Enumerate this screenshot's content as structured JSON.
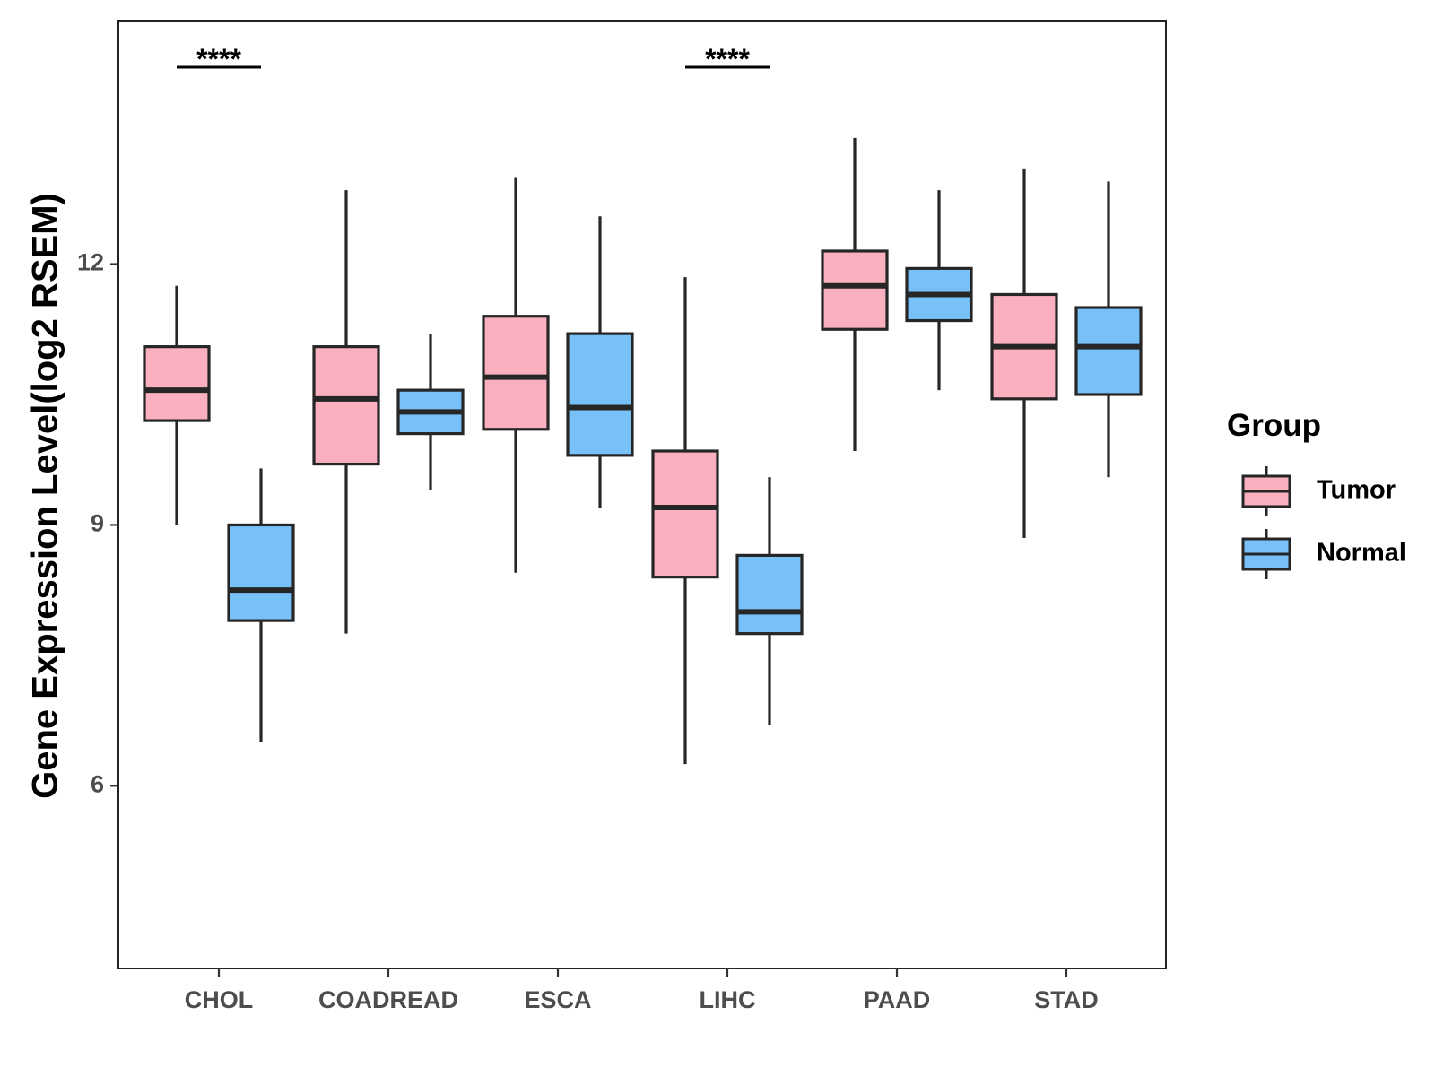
{
  "chart_data": {
    "type": "boxplot",
    "title": "",
    "xlabel": "",
    "ylabel": "Gene Expression Level(log2 RSEM)",
    "ylim": [
      3.9,
      14.8
    ],
    "yticks": [
      6,
      9,
      12
    ],
    "categories": [
      "CHOL",
      "COADREAD",
      "ESCA",
      "LIHC",
      "PAAD",
      "STAD"
    ],
    "legend": {
      "title": "Group",
      "position": "right"
    },
    "series": [
      {
        "name": "Tumor",
        "color": "#FBB0C0",
        "boxes": [
          {
            "category": "CHOL",
            "whisker_low": 9.0,
            "q1": 10.2,
            "median": 10.55,
            "q3": 11.05,
            "whisker_high": 11.75
          },
          {
            "category": "COADREAD",
            "whisker_low": 7.75,
            "q1": 9.7,
            "median": 10.45,
            "q3": 11.05,
            "whisker_high": 12.85
          },
          {
            "category": "ESCA",
            "whisker_low": 8.45,
            "q1": 10.1,
            "median": 10.7,
            "q3": 11.4,
            "whisker_high": 13.0
          },
          {
            "category": "LIHC",
            "whisker_low": 6.25,
            "q1": 8.4,
            "median": 9.2,
            "q3": 9.85,
            "whisker_high": 11.85
          },
          {
            "category": "PAAD",
            "whisker_low": 9.85,
            "q1": 11.25,
            "median": 11.75,
            "q3": 12.15,
            "whisker_high": 13.45
          },
          {
            "category": "STAD",
            "whisker_low": 8.85,
            "q1": 10.45,
            "median": 11.05,
            "q3": 11.65,
            "whisker_high": 13.1
          }
        ]
      },
      {
        "name": "Normal",
        "color": "#78C1F8",
        "boxes": [
          {
            "category": "CHOL",
            "whisker_low": 6.5,
            "q1": 7.9,
            "median": 8.25,
            "q3": 9.0,
            "whisker_high": 9.65
          },
          {
            "category": "COADREAD",
            "whisker_low": 9.4,
            "q1": 10.05,
            "median": 10.3,
            "q3": 10.55,
            "whisker_high": 11.2
          },
          {
            "category": "ESCA",
            "whisker_low": 9.2,
            "q1": 9.8,
            "median": 10.35,
            "q3": 11.2,
            "whisker_high": 12.55
          },
          {
            "category": "LIHC",
            "whisker_low": 6.7,
            "q1": 7.75,
            "median": 8.0,
            "q3": 8.65,
            "whisker_high": 9.55
          },
          {
            "category": "PAAD",
            "whisker_low": 10.55,
            "q1": 11.35,
            "median": 11.65,
            "q3": 11.95,
            "whisker_high": 12.85
          },
          {
            "category": "STAD",
            "whisker_low": 9.55,
            "q1": 10.5,
            "median": 11.05,
            "q3": 11.5,
            "whisker_high": 12.95
          }
        ]
      }
    ],
    "annotations": [
      {
        "category": "CHOL",
        "label": "****"
      },
      {
        "category": "LIHC",
        "label": "****"
      }
    ]
  }
}
